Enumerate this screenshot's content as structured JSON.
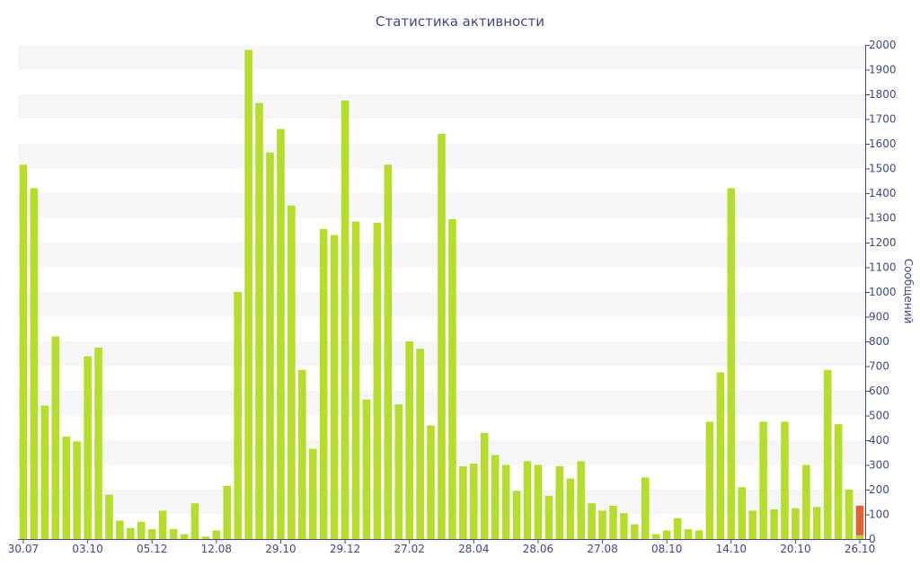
{
  "chart_data": {
    "type": "bar",
    "title": "Статистика активности",
    "ylabel": "Сообщений",
    "ylim": [
      0,
      2000
    ],
    "y_ticks": [
      0,
      100,
      200,
      300,
      400,
      500,
      600,
      700,
      800,
      900,
      1000,
      1100,
      1200,
      1300,
      1400,
      1500,
      1600,
      1700,
      1800,
      1900,
      2000
    ],
    "x_tick_labels": [
      {
        "label": "30.07",
        "index": 0
      },
      {
        "label": "03.10",
        "index": 6
      },
      {
        "label": "05.12",
        "index": 12
      },
      {
        "label": "12.08",
        "index": 18
      },
      {
        "label": "29.10",
        "index": 24
      },
      {
        "label": "29.12",
        "index": 30
      },
      {
        "label": "27.02",
        "index": 36
      },
      {
        "label": "28.04",
        "index": 42
      },
      {
        "label": "28.06",
        "index": 48
      },
      {
        "label": "27.08",
        "index": 54
      },
      {
        "label": "08.10",
        "index": 60
      },
      {
        "label": "14.10",
        "index": 66
      },
      {
        "label": "20.10",
        "index": 72
      },
      {
        "label": "26.10",
        "index": 78
      }
    ],
    "values": [
      1515,
      1420,
      540,
      820,
      415,
      395,
      740,
      775,
      180,
      75,
      45,
      70,
      40,
      115,
      40,
      20,
      145,
      10,
      35,
      215,
      1000,
      1980,
      1765,
      1565,
      1660,
      1350,
      685,
      365,
      1255,
      1230,
      1775,
      1285,
      565,
      1280,
      1515,
      545,
      800,
      770,
      460,
      1640,
      1295,
      295,
      305,
      430,
      340,
      300,
      195,
      315,
      300,
      175,
      295,
      245,
      315,
      145,
      115,
      135,
      105,
      60,
      250,
      20,
      35,
      85,
      40,
      35,
      475,
      675,
      1420,
      210,
      115,
      475,
      120,
      475,
      125,
      300,
      130,
      685,
      465,
      200,
      135
    ],
    "highlight_index": 78,
    "highlight_partial_value": 15,
    "bar_color": "#b5de2c",
    "highlight_color": "#e8622e",
    "band_color": "#f6f6f6",
    "text_color": "#3e4a85",
    "grid": true
  }
}
